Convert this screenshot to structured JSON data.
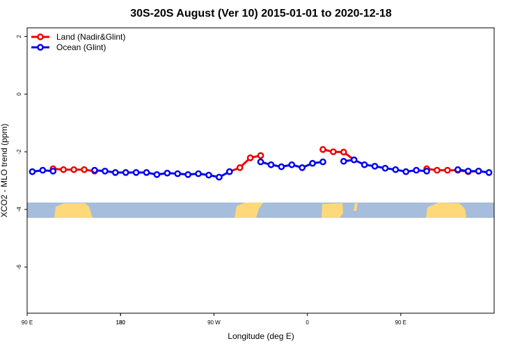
{
  "chart_data": {
    "type": "line",
    "title": "30S-20S August (Ver 10)   2015-01-01 to 2020-12-18",
    "xlabel": "Longitude (deg E)",
    "ylabel": "XCO2 - MLO trend (ppm)",
    "x": [
      95,
      105,
      115,
      125,
      135,
      145,
      155,
      165,
      175,
      185,
      195,
      205,
      215,
      225,
      235,
      245,
      255,
      265,
      275,
      285,
      295,
      305,
      315,
      325,
      335,
      345,
      355,
      365,
      375,
      385,
      395,
      405,
      415,
      425,
      435,
      445,
      455,
      465,
      475,
      485,
      495,
      505,
      515,
      525,
      535
    ],
    "series": [
      {
        "name": "Land (Nadir&Glint)",
        "color": "#ee0000",
        "values": [
          null,
          null,
          -2.59,
          -2.62,
          -2.62,
          -2.62,
          -2.67,
          null,
          null,
          null,
          null,
          null,
          null,
          null,
          null,
          null,
          null,
          null,
          null,
          -2.69,
          -2.55,
          -2.21,
          -2.13,
          null,
          null,
          null,
          null,
          null,
          -1.92,
          -2.0,
          -2.01,
          -2.28,
          null,
          null,
          null,
          null,
          null,
          null,
          -2.59,
          -2.64,
          -2.64,
          -2.64,
          -2.69,
          -2.67,
          null
        ]
      },
      {
        "name": "Ocean (Glint)",
        "color": "#0000ee",
        "values": [
          -2.69,
          -2.64,
          -2.67,
          null,
          null,
          null,
          -2.64,
          -2.67,
          -2.72,
          -2.72,
          -2.72,
          -2.72,
          -2.79,
          -2.74,
          -2.76,
          -2.79,
          -2.76,
          -2.81,
          -2.88,
          -2.69,
          null,
          null,
          -2.35,
          -2.45,
          -2.52,
          -2.45,
          -2.55,
          -2.4,
          -2.35,
          null,
          -2.33,
          -2.28,
          -2.45,
          -2.5,
          -2.57,
          -2.62,
          -2.69,
          -2.64,
          -2.67,
          null,
          null,
          -2.62,
          -2.67,
          -2.67,
          -2.72
        ]
      }
    ],
    "xlim": [
      90,
      540
    ],
    "xticks": [
      {
        "value": 90,
        "label": "90 E"
      },
      180,
      {
        "value": 270,
        "label": "90 W"
      },
      {
        "value": 360,
        "label": "0"
      },
      {
        "value": 450,
        "label": "90 E"
      },
      180.0001
    ],
    "ylim": [
      -7.6,
      2.3
    ],
    "yticks": [
      -6,
      -4,
      -2,
      0,
      2
    ],
    "legend": "top-left"
  }
}
